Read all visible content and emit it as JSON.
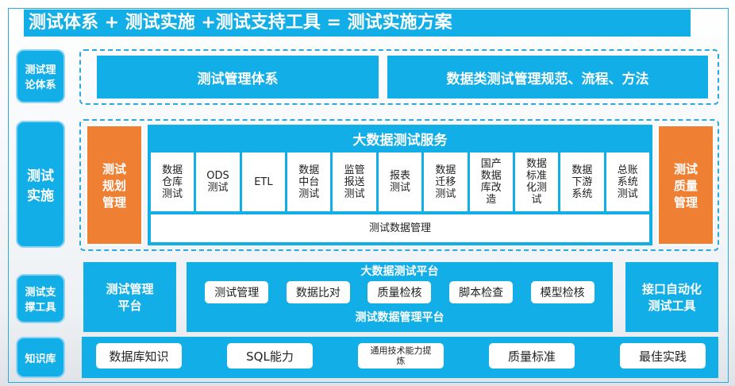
{
  "title": "测试体系 + 测试实施 +测试支持工具 = 测试实施方案",
  "left_labels": [
    "测试理论体系",
    "测试实施",
    "测试支撑工具",
    "知识库"
  ],
  "row1": {
    "items": [
      "测试管理体系",
      "数据类测试管理规范、流程、方法"
    ]
  },
  "row2": {
    "left": "测试规划管理",
    "right": "测试质量管理",
    "center_title": "大数据测试服务",
    "cells": [
      "数据仓库测试",
      "ODS测试",
      "ETL",
      "数据中台测试",
      "监管报送测试",
      "报表测试",
      "数据迁移测试",
      "国产数据库改造",
      "数据标准化测试",
      "数据下游系统",
      "总账系统测试"
    ],
    "bottom": "测试数据管理"
  },
  "row3": {
    "left": "测试管理平台",
    "center_title": "大数据测试平台",
    "center_items": [
      "测试管理",
      "数据比对",
      "质量检核",
      "脚本检查",
      "模型检核"
    ],
    "center_bottom": "测试数据管理平台",
    "right": "接口自动化测试工具"
  },
  "row4": {
    "items": [
      "数据库知识",
      "SQL能力",
      "通用技术能力提炼",
      "质量标准",
      "最佳实践"
    ]
  },
  "colors": {
    "primary": "#12aee8",
    "accent": "#ee7f33"
  }
}
